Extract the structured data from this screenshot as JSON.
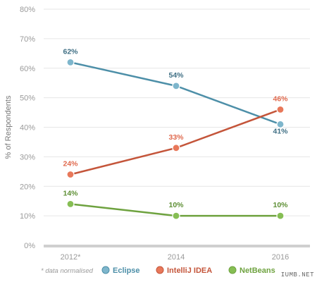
{
  "chart_data": {
    "type": "line",
    "categories": [
      "2012*",
      "2014",
      "2016"
    ],
    "series": [
      {
        "name": "Eclipse",
        "color": "#4d8fa8",
        "fill": "#7eb6cc",
        "values": [
          62,
          54,
          41
        ],
        "labels": [
          "62%",
          "54%",
          "41%"
        ],
        "label_color": "#3f6f84"
      },
      {
        "name": "IntelliJ IDEA",
        "color": "#c4553a",
        "fill": "#e8785a",
        "values": [
          24,
          33,
          46
        ],
        "labels": [
          "24%",
          "33%",
          "46%"
        ],
        "label_color": "#e06a4e"
      },
      {
        "name": "NetBeans",
        "color": "#6ea23f",
        "fill": "#86be54",
        "values": [
          14,
          10,
          10
        ],
        "labels": [
          "14%",
          "10%",
          "10%"
        ],
        "label_color": "#5e8f35"
      }
    ],
    "ylabel": "% of Respondents",
    "ylim": [
      0,
      80
    ],
    "yticks": [
      "0%",
      "10%",
      "20%",
      "30%",
      "40%",
      "50%",
      "60%",
      "70%",
      "80%"
    ],
    "grid": true,
    "legend_position": "bottom",
    "footnote": "* data normalised"
  },
  "watermark": "IUMB.NET"
}
